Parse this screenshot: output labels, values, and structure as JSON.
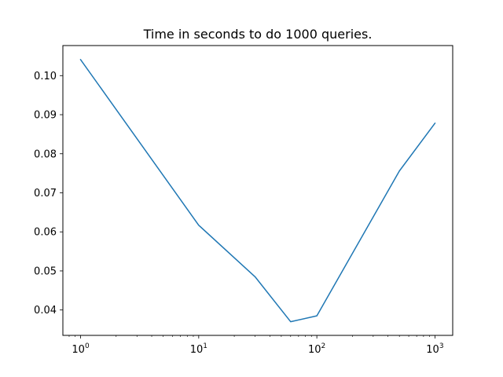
{
  "chart_data": {
    "type": "line",
    "title": "Time in seconds to do 1000 queries.",
    "xlabel": "",
    "ylabel": "",
    "xscale": "log",
    "grid": false,
    "xlim": [
      0.708,
      1413
    ],
    "ylim": [
      0.0335,
      0.1077
    ],
    "x_ticks": [
      {
        "value": 1,
        "base": "10",
        "exp": "0"
      },
      {
        "value": 10,
        "base": "10",
        "exp": "1"
      },
      {
        "value": 100,
        "base": "10",
        "exp": "2"
      },
      {
        "value": 1000,
        "base": "10",
        "exp": "3"
      }
    ],
    "y_ticks": [
      {
        "value": 0.04,
        "label": "0.04"
      },
      {
        "value": 0.05,
        "label": "0.05"
      },
      {
        "value": 0.06,
        "label": "0.06"
      },
      {
        "value": 0.07,
        "label": "0.07"
      },
      {
        "value": 0.08,
        "label": "0.08"
      },
      {
        "value": 0.09,
        "label": "0.09"
      },
      {
        "value": 0.1,
        "label": "0.10"
      }
    ],
    "series": [
      {
        "color": "#1f77b4",
        "x": [
          1,
          10,
          30,
          60,
          100,
          500,
          1000
        ],
        "y": [
          0.1041,
          0.0617,
          0.0485,
          0.037,
          0.0385,
          0.0756,
          0.0878
        ]
      }
    ]
  }
}
